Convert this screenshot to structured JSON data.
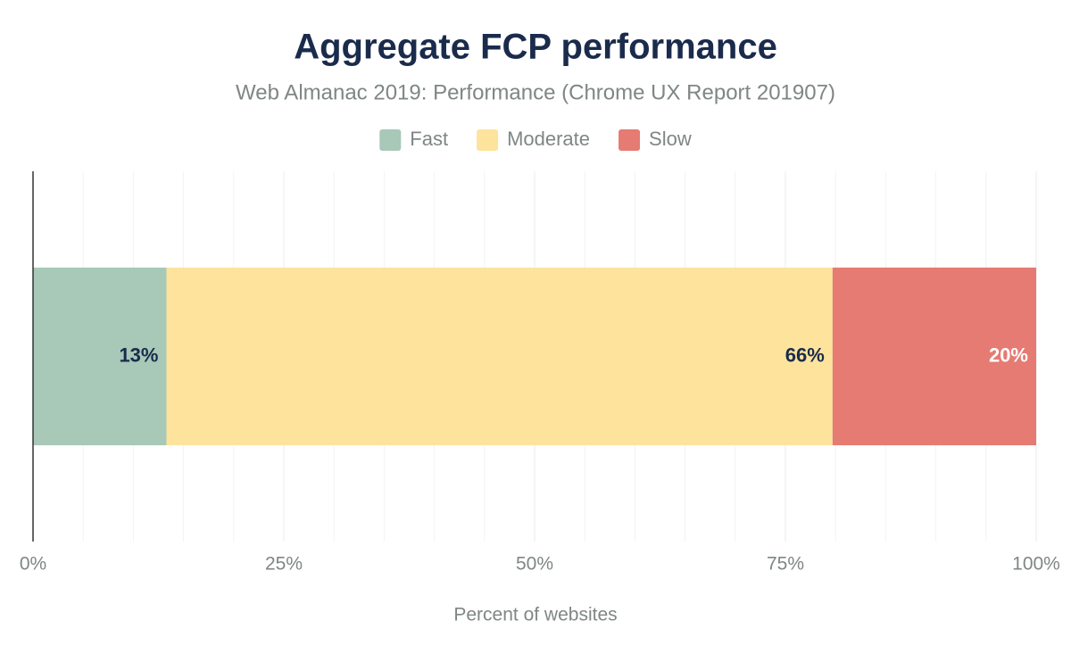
{
  "chart_data": {
    "type": "stacked_bar_horizontal",
    "title": "Aggregate FCP performance",
    "subtitle": "Web Almanac 2019: Performance (Chrome UX Report 201907)",
    "x_label": "Percent of websites",
    "categories": [
      null
    ],
    "series": [
      {
        "name": "Fast",
        "color": "#a8c8b8",
        "label_color": "#1a2b4c",
        "values": [
          13.3
        ],
        "value_labels": [
          "13%"
        ]
      },
      {
        "name": "Moderate",
        "color": "#fde39c",
        "label_color": "#1a2b4c",
        "values": [
          66.4
        ],
        "value_labels": [
          "66%"
        ]
      },
      {
        "name": "Slow",
        "color": "#e57b73",
        "label_color": "#ffffff",
        "values": [
          20.3
        ],
        "value_labels": [
          "20%"
        ]
      }
    ],
    "xlim": [
      0,
      100
    ],
    "xticks": [
      {
        "value": 0,
        "label": "0%"
      },
      {
        "value": 25,
        "label": "25%"
      },
      {
        "value": 50,
        "label": "50%"
      },
      {
        "value": 75,
        "label": "75%"
      },
      {
        "value": 100,
        "label": "100%"
      }
    ],
    "minor_grid": [
      5,
      10,
      15,
      20,
      30,
      35,
      40,
      45,
      55,
      60,
      65,
      70,
      80,
      85,
      90,
      95
    ],
    "grid": true,
    "legend": "top"
  }
}
